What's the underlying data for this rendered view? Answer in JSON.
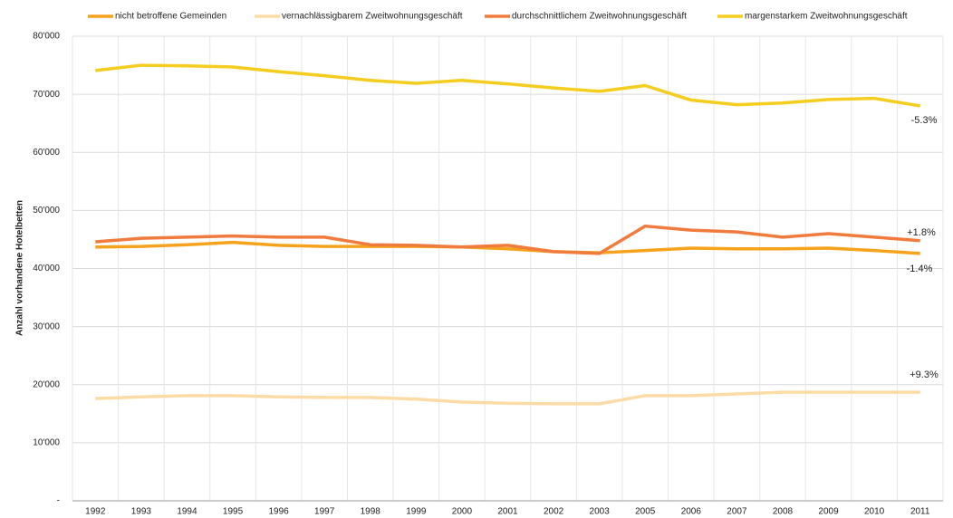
{
  "chart_data": {
    "type": "line",
    "y_axis_label": "Anzahl vorhandene Hotelbetten",
    "categories": [
      "1992",
      "1993",
      "1994",
      "1995",
      "1996",
      "1997",
      "1998",
      "1999",
      "2000",
      "2001",
      "2002",
      "2003",
      "2005",
      "2006",
      "2007",
      "2008",
      "2009",
      "2010",
      "2011"
    ],
    "series": [
      {
        "name": "nicht betroffene Gemeinden",
        "color": "#f5a21c",
        "values": [
          43700,
          43800,
          44100,
          44500,
          44000,
          43800,
          43800,
          43800,
          43700,
          43400,
          42900,
          42700,
          43100,
          43500,
          43400,
          43400,
          43500,
          43100,
          42600
        ]
      },
      {
        "name": "vernachlässigbarem Zweitwohnungsgeschäft",
        "color": "#fcdba6",
        "values": [
          17600,
          17900,
          18100,
          18100,
          17900,
          17800,
          17800,
          17500,
          17000,
          16800,
          16700,
          16700,
          18100,
          18100,
          18400,
          18700,
          18700,
          18700,
          18700
        ]
      },
      {
        "name": "durchschnittlichem Zweitwohnungsgeschäft",
        "color": "#f07b3c",
        "values": [
          44600,
          45200,
          45400,
          45600,
          45400,
          45400,
          44100,
          44000,
          43700,
          44000,
          42900,
          42600,
          47300,
          46600,
          46300,
          45400,
          46000,
          45400,
          44800
        ]
      },
      {
        "name": "margenstarkem Zweitwohnungsgeschäft",
        "color": "#f5cd1e",
        "values": [
          74100,
          75000,
          74900,
          74700,
          73900,
          73200,
          72400,
          71900,
          72400,
          71800,
          71100,
          70500,
          71500,
          69000,
          68200,
          68500,
          69100,
          69300,
          68000
        ]
      }
    ],
    "annotations": [
      "-5.3%",
      "+1.8%",
      "-1.4%",
      "+9.3%"
    ],
    "ylim": [
      0,
      80000
    ],
    "yticks": [
      {
        "value": 0,
        "label": "-"
      },
      {
        "value": 10000,
        "label": "10'000"
      },
      {
        "value": 20000,
        "label": "20'000"
      },
      {
        "value": 30000,
        "label": "30'000"
      },
      {
        "value": 40000,
        "label": "40'000"
      },
      {
        "value": 50000,
        "label": "50'000"
      },
      {
        "value": 60000,
        "label": "60'000"
      },
      {
        "value": 70000,
        "label": "70'000"
      },
      {
        "value": 80000,
        "label": "80'000"
      }
    ],
    "grid": true,
    "legend": "top"
  }
}
